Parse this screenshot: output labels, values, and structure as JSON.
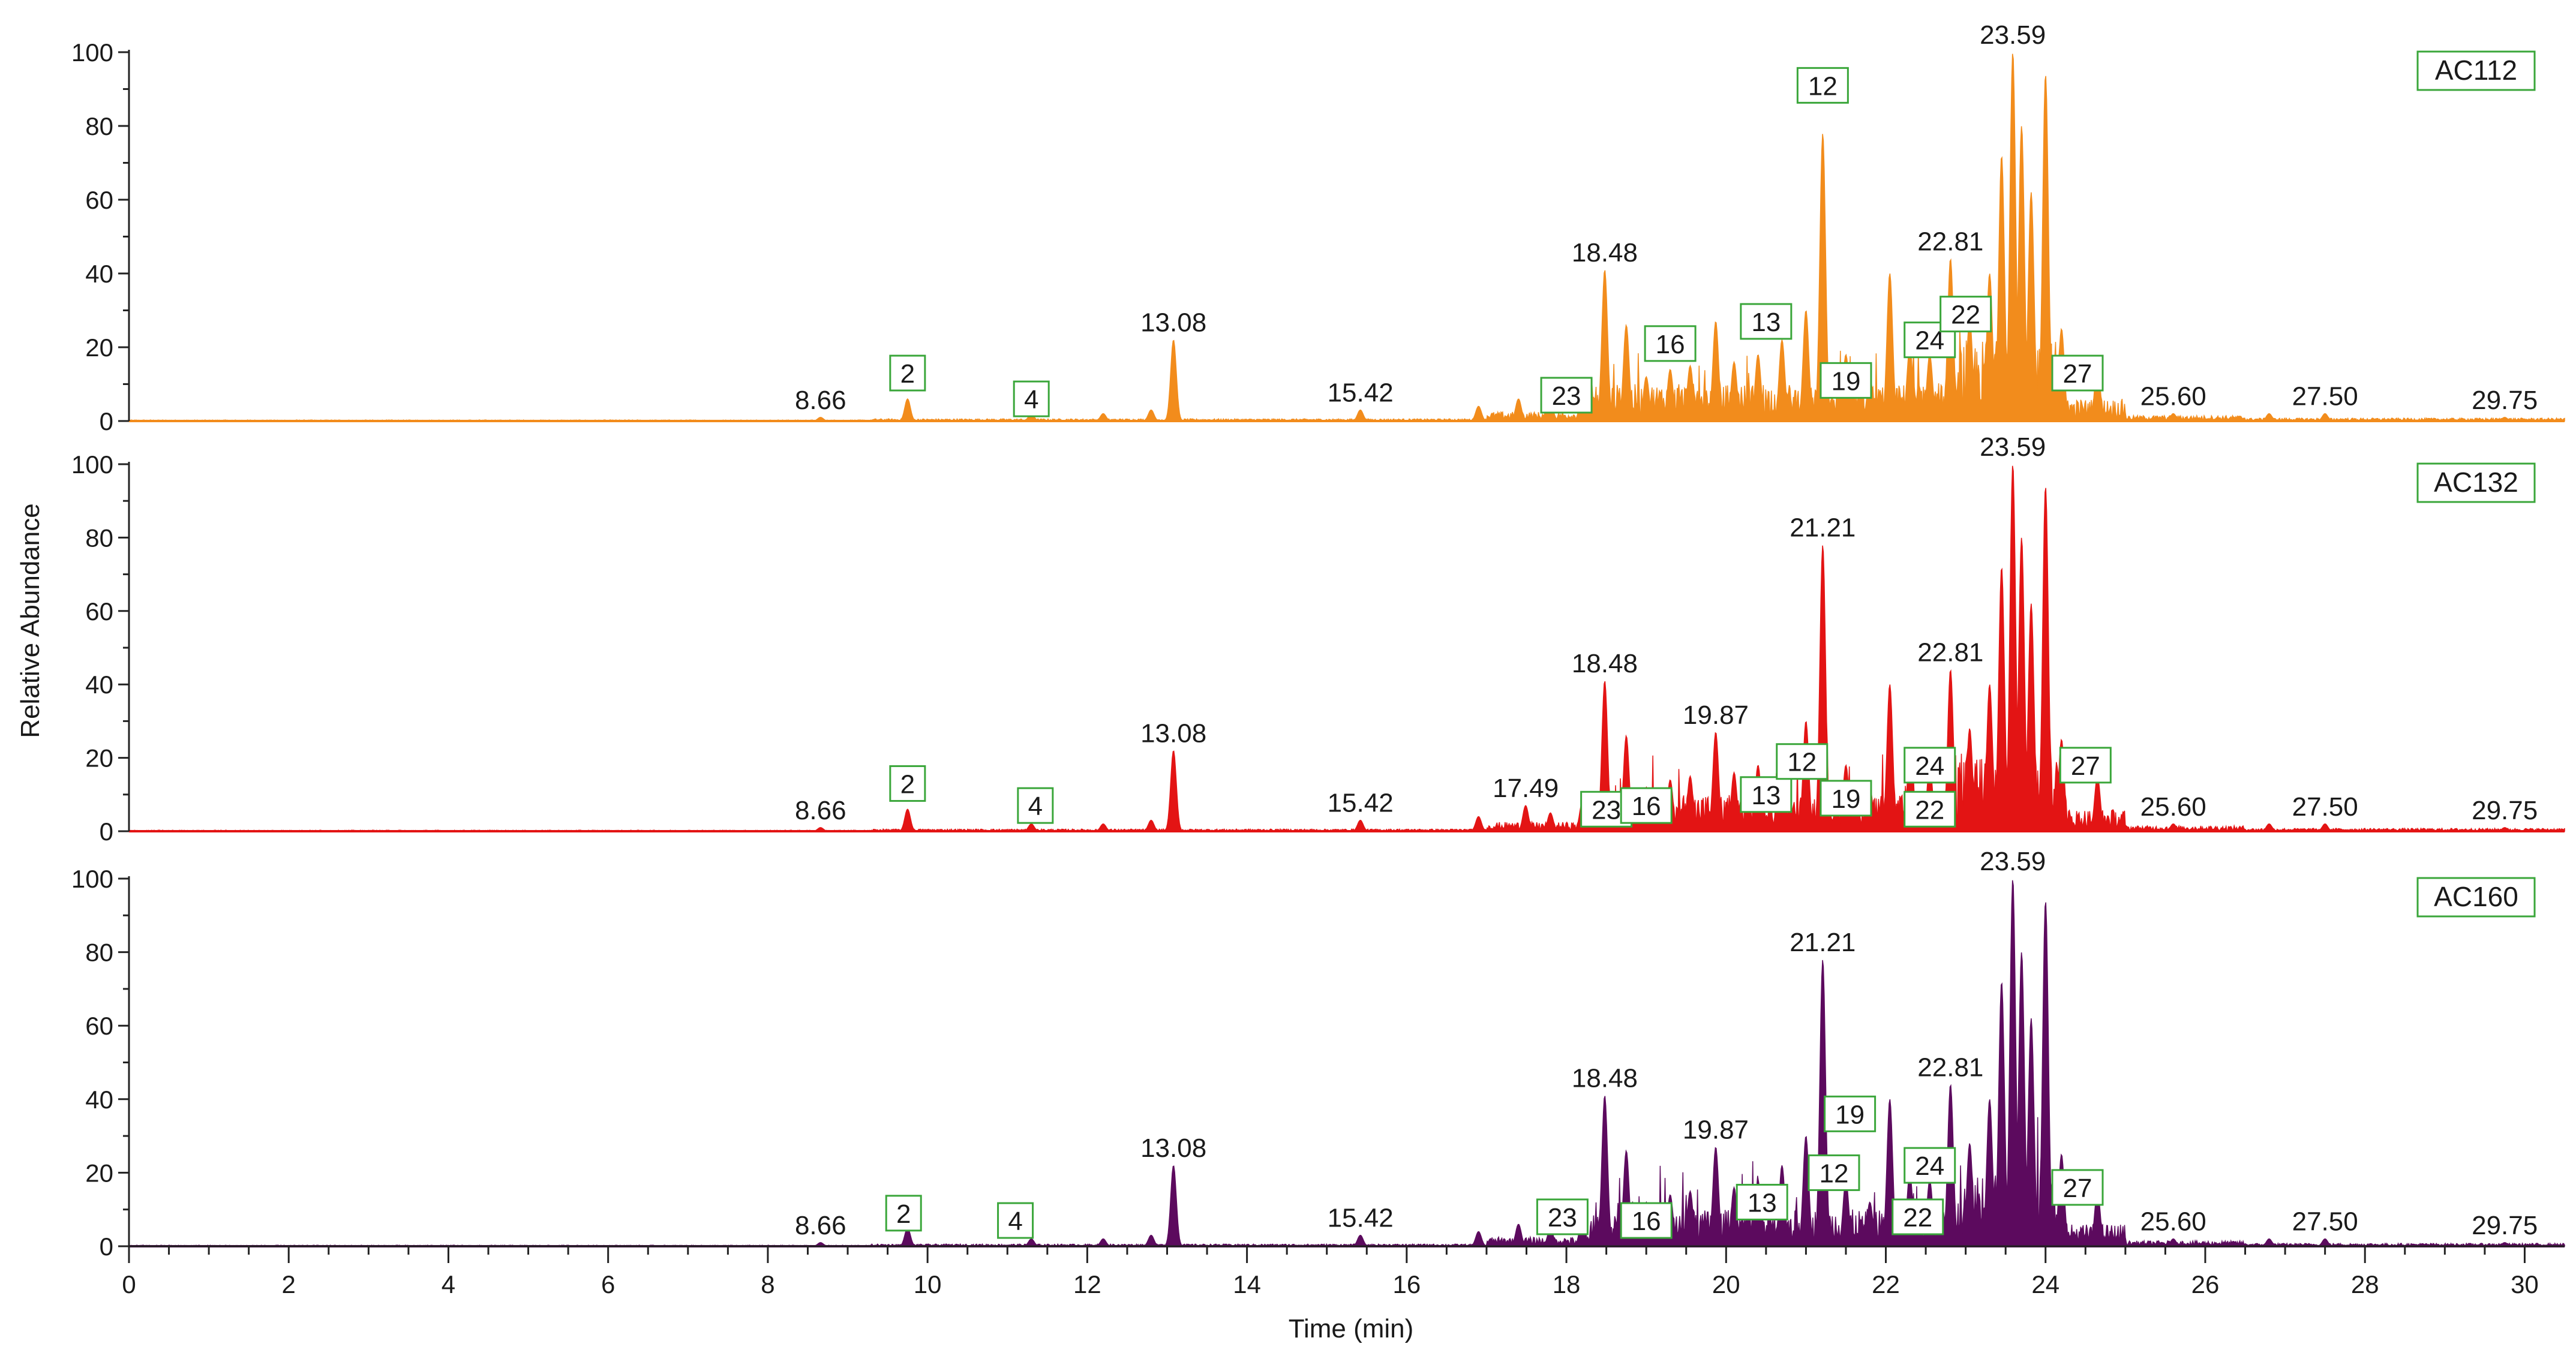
{
  "chart_data": {
    "type": "line",
    "title": "",
    "xlabel": "Time (min)",
    "ylabel": "Relative Abundance",
    "xlim": [
      0,
      30.5
    ],
    "ylim": [
      0,
      100
    ],
    "x_ticks": [
      0,
      2,
      4,
      6,
      8,
      10,
      12,
      14,
      16,
      18,
      20,
      22,
      24,
      26,
      28,
      30
    ],
    "y_ticks": [
      0,
      20,
      40,
      60,
      80,
      100
    ],
    "panels": [
      {
        "sample": "AC112",
        "color": "#f28c1c",
        "peaks": [
          {
            "t": 8.66,
            "y": 1
          },
          {
            "t": 9.75,
            "y": 6
          },
          {
            "t": 11.3,
            "y": 2
          },
          {
            "t": 12.2,
            "y": 2
          },
          {
            "t": 12.8,
            "y": 3
          },
          {
            "t": 13.08,
            "y": 22
          },
          {
            "t": 15.42,
            "y": 3
          },
          {
            "t": 16.9,
            "y": 4
          },
          {
            "t": 17.4,
            "y": 6
          },
          {
            "t": 17.8,
            "y": 5
          },
          {
            "t": 18.2,
            "y": 8
          },
          {
            "t": 18.48,
            "y": 41
          },
          {
            "t": 18.75,
            "y": 26
          },
          {
            "t": 19.0,
            "y": 12
          },
          {
            "t": 19.3,
            "y": 14
          },
          {
            "t": 19.55,
            "y": 15
          },
          {
            "t": 19.87,
            "y": 27
          },
          {
            "t": 20.1,
            "y": 16
          },
          {
            "t": 20.4,
            "y": 18
          },
          {
            "t": 20.7,
            "y": 22
          },
          {
            "t": 21.0,
            "y": 30
          },
          {
            "t": 21.21,
            "y": 78
          },
          {
            "t": 21.5,
            "y": 18
          },
          {
            "t": 21.8,
            "y": 12
          },
          {
            "t": 22.05,
            "y": 40
          },
          {
            "t": 22.3,
            "y": 20
          },
          {
            "t": 22.55,
            "y": 18
          },
          {
            "t": 22.81,
            "y": 44
          },
          {
            "t": 23.05,
            "y": 28
          },
          {
            "t": 23.3,
            "y": 40
          },
          {
            "t": 23.45,
            "y": 72
          },
          {
            "t": 23.59,
            "y": 100
          },
          {
            "t": 23.7,
            "y": 80
          },
          {
            "t": 23.82,
            "y": 62
          },
          {
            "t": 24.0,
            "y": 94
          },
          {
            "t": 24.2,
            "y": 25
          },
          {
            "t": 24.65,
            "y": 15
          },
          {
            "t": 25.6,
            "y": 2
          },
          {
            "t": 26.8,
            "y": 2
          },
          {
            "t": 27.5,
            "y": 2
          },
          {
            "t": 29.75,
            "y": 1
          }
        ],
        "rt_labels": [
          {
            "text": "8.66",
            "t": 8.66,
            "y": 1
          },
          {
            "text": "13.08",
            "t": 13.08,
            "y": 22
          },
          {
            "text": "15.42",
            "t": 15.42,
            "y": 3
          },
          {
            "text": "18.48",
            "t": 18.48,
            "y": 41
          },
          {
            "text": "22.81",
            "t": 22.81,
            "y": 44
          },
          {
            "text": "23.59",
            "t": 23.59,
            "y": 100
          },
          {
            "text": "25.60",
            "t": 25.6,
            "y": 2
          },
          {
            "text": "27.50",
            "t": 27.5,
            "y": 2
          },
          {
            "text": "29.75",
            "t": 29.75,
            "y": 1
          }
        ],
        "boxed_labels": [
          {
            "text": "2",
            "t": 9.75,
            "y": 13
          },
          {
            "text": "4",
            "t": 11.3,
            "y": 6
          },
          {
            "text": "23",
            "t": 18.0,
            "y": 7
          },
          {
            "text": "16",
            "t": 19.3,
            "y": 21
          },
          {
            "text": "13",
            "t": 20.5,
            "y": 27
          },
          {
            "text": "12",
            "t": 21.21,
            "y": 91
          },
          {
            "text": "19",
            "t": 21.5,
            "y": 11
          },
          {
            "text": "24",
            "t": 22.55,
            "y": 22
          },
          {
            "text": "22",
            "t": 23.0,
            "y": 29
          },
          {
            "text": "27",
            "t": 24.4,
            "y": 13
          }
        ]
      },
      {
        "sample": "AC132",
        "color": "#e31414",
        "peaks": [
          {
            "t": 8.66,
            "y": 1
          },
          {
            "t": 9.75,
            "y": 6
          },
          {
            "t": 11.3,
            "y": 2
          },
          {
            "t": 12.2,
            "y": 2
          },
          {
            "t": 12.8,
            "y": 3
          },
          {
            "t": 13.08,
            "y": 22
          },
          {
            "t": 15.42,
            "y": 3
          },
          {
            "t": 16.9,
            "y": 4
          },
          {
            "t": 17.49,
            "y": 7
          },
          {
            "t": 17.8,
            "y": 5
          },
          {
            "t": 18.2,
            "y": 8
          },
          {
            "t": 18.48,
            "y": 41
          },
          {
            "t": 18.75,
            "y": 26
          },
          {
            "t": 19.0,
            "y": 12
          },
          {
            "t": 19.3,
            "y": 14
          },
          {
            "t": 19.55,
            "y": 15
          },
          {
            "t": 19.87,
            "y": 27
          },
          {
            "t": 20.1,
            "y": 16
          },
          {
            "t": 20.4,
            "y": 18
          },
          {
            "t": 20.7,
            "y": 22
          },
          {
            "t": 21.0,
            "y": 30
          },
          {
            "t": 21.21,
            "y": 78
          },
          {
            "t": 21.5,
            "y": 18
          },
          {
            "t": 21.8,
            "y": 12
          },
          {
            "t": 22.05,
            "y": 40
          },
          {
            "t": 22.3,
            "y": 20
          },
          {
            "t": 22.55,
            "y": 18
          },
          {
            "t": 22.81,
            "y": 44
          },
          {
            "t": 23.05,
            "y": 28
          },
          {
            "t": 23.3,
            "y": 40
          },
          {
            "t": 23.45,
            "y": 72
          },
          {
            "t": 23.59,
            "y": 100
          },
          {
            "t": 23.7,
            "y": 80
          },
          {
            "t": 23.82,
            "y": 62
          },
          {
            "t": 24.0,
            "y": 94
          },
          {
            "t": 24.2,
            "y": 25
          },
          {
            "t": 24.65,
            "y": 15
          },
          {
            "t": 25.6,
            "y": 2
          },
          {
            "t": 26.8,
            "y": 2
          },
          {
            "t": 27.5,
            "y": 2
          },
          {
            "t": 29.75,
            "y": 1
          }
        ],
        "rt_labels": [
          {
            "text": "8.66",
            "t": 8.66,
            "y": 1
          },
          {
            "text": "13.08",
            "t": 13.08,
            "y": 22
          },
          {
            "text": "15.42",
            "t": 15.42,
            "y": 3
          },
          {
            "text": "17.49",
            "t": 17.49,
            "y": 7
          },
          {
            "text": "18.48",
            "t": 18.48,
            "y": 41
          },
          {
            "text": "19.87",
            "t": 19.87,
            "y": 27
          },
          {
            "text": "21.21",
            "t": 21.21,
            "y": 78
          },
          {
            "text": "22.81",
            "t": 22.81,
            "y": 44
          },
          {
            "text": "23.59",
            "t": 23.59,
            "y": 100
          },
          {
            "text": "25.60",
            "t": 25.6,
            "y": 2
          },
          {
            "text": "27.50",
            "t": 27.5,
            "y": 2
          },
          {
            "text": "29.75",
            "t": 29.75,
            "y": 1
          }
        ],
        "boxed_labels": [
          {
            "text": "2",
            "t": 9.75,
            "y": 13
          },
          {
            "text": "4",
            "t": 11.35,
            "y": 7
          },
          {
            "text": "23",
            "t": 18.5,
            "y": 6
          },
          {
            "text": "16",
            "t": 19.0,
            "y": 7
          },
          {
            "text": "13",
            "t": 20.5,
            "y": 10
          },
          {
            "text": "12",
            "t": 20.95,
            "y": 19
          },
          {
            "text": "19",
            "t": 21.5,
            "y": 9
          },
          {
            "text": "24",
            "t": 22.55,
            "y": 18
          },
          {
            "text": "22",
            "t": 22.55,
            "y": 6
          },
          {
            "text": "27",
            "t": 24.5,
            "y": 18
          }
        ]
      },
      {
        "sample": "AC160",
        "color": "#5c0a5e",
        "peaks": [
          {
            "t": 8.66,
            "y": 1
          },
          {
            "t": 9.75,
            "y": 5
          },
          {
            "t": 11.3,
            "y": 2
          },
          {
            "t": 12.2,
            "y": 2
          },
          {
            "t": 12.8,
            "y": 3
          },
          {
            "t": 13.08,
            "y": 22
          },
          {
            "t": 15.42,
            "y": 3
          },
          {
            "t": 16.9,
            "y": 4
          },
          {
            "t": 17.4,
            "y": 6
          },
          {
            "t": 17.8,
            "y": 5
          },
          {
            "t": 18.2,
            "y": 8
          },
          {
            "t": 18.48,
            "y": 41
          },
          {
            "t": 18.75,
            "y": 26
          },
          {
            "t": 19.0,
            "y": 12
          },
          {
            "t": 19.3,
            "y": 14
          },
          {
            "t": 19.55,
            "y": 15
          },
          {
            "t": 19.87,
            "y": 27
          },
          {
            "t": 20.1,
            "y": 16
          },
          {
            "t": 20.4,
            "y": 18
          },
          {
            "t": 20.7,
            "y": 22
          },
          {
            "t": 21.0,
            "y": 30
          },
          {
            "t": 21.21,
            "y": 78
          },
          {
            "t": 21.5,
            "y": 18
          },
          {
            "t": 21.8,
            "y": 12
          },
          {
            "t": 22.05,
            "y": 40
          },
          {
            "t": 22.3,
            "y": 20
          },
          {
            "t": 22.55,
            "y": 18
          },
          {
            "t": 22.81,
            "y": 44
          },
          {
            "t": 23.05,
            "y": 28
          },
          {
            "t": 23.3,
            "y": 40
          },
          {
            "t": 23.45,
            "y": 72
          },
          {
            "t": 23.59,
            "y": 100
          },
          {
            "t": 23.7,
            "y": 80
          },
          {
            "t": 23.82,
            "y": 62
          },
          {
            "t": 24.0,
            "y": 94
          },
          {
            "t": 24.2,
            "y": 25
          },
          {
            "t": 24.65,
            "y": 15
          },
          {
            "t": 25.6,
            "y": 2
          },
          {
            "t": 26.8,
            "y": 2
          },
          {
            "t": 27.5,
            "y": 2
          },
          {
            "t": 29.75,
            "y": 1
          }
        ],
        "rt_labels": [
          {
            "text": "8.66",
            "t": 8.66,
            "y": 1
          },
          {
            "text": "13.08",
            "t": 13.08,
            "y": 22
          },
          {
            "text": "15.42",
            "t": 15.42,
            "y": 3
          },
          {
            "text": "18.48",
            "t": 18.48,
            "y": 41
          },
          {
            "text": "19.87",
            "t": 19.87,
            "y": 27
          },
          {
            "text": "21.21",
            "t": 21.21,
            "y": 78
          },
          {
            "text": "22.81",
            "t": 22.81,
            "y": 44
          },
          {
            "text": "23.59",
            "t": 23.59,
            "y": 100
          },
          {
            "text": "25.60",
            "t": 25.6,
            "y": 2
          },
          {
            "text": "27.50",
            "t": 27.5,
            "y": 2
          },
          {
            "text": "29.75",
            "t": 29.75,
            "y": 1
          }
        ],
        "boxed_labels": [
          {
            "text": "2",
            "t": 9.7,
            "y": 9
          },
          {
            "text": "4",
            "t": 11.1,
            "y": 7
          },
          {
            "text": "23",
            "t": 17.95,
            "y": 8
          },
          {
            "text": "16",
            "t": 19.0,
            "y": 7
          },
          {
            "text": "13",
            "t": 20.45,
            "y": 12
          },
          {
            "text": "12",
            "t": 21.35,
            "y": 20
          },
          {
            "text": "19",
            "t": 21.55,
            "y": 36
          },
          {
            "text": "24",
            "t": 22.55,
            "y": 22
          },
          {
            "text": "22",
            "t": 22.4,
            "y": 8
          },
          {
            "text": "27",
            "t": 24.4,
            "y": 16
          }
        ]
      }
    ]
  }
}
